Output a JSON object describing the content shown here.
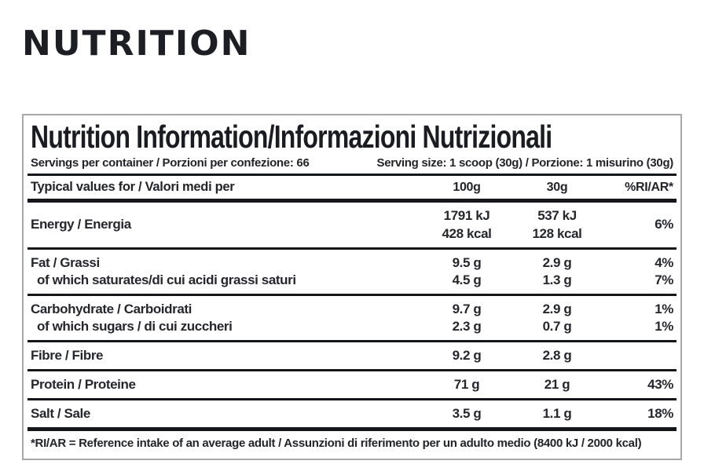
{
  "page": {
    "heading": "NUTRITION"
  },
  "table": {
    "title": "Nutrition Information/Informazioni Nutrizionali",
    "servings_left": "Servings per container / Porzioni per confezione: 66",
    "servings_right": "Serving size: 1 scoop (30g) / Porzione: 1 misurino (30g)",
    "columns": {
      "label": "Typical values for / Valori medi per",
      "col_100g": "100g",
      "col_30g": "30g",
      "col_ri": "%RI/AR*"
    },
    "energy": {
      "label": "Energy / Energia",
      "v100_kj": "1791 kJ",
      "v100_kcal": "428 kcal",
      "v30_kj": "537 kJ",
      "v30_kcal": "128 kcal",
      "ri": "6%"
    },
    "fat": {
      "label": "Fat / Grassi",
      "v100": "9.5 g",
      "v30": "2.9 g",
      "ri": "4%"
    },
    "saturates": {
      "label": "of which saturates/di cui acidi grassi saturi",
      "v100": "4.5 g",
      "v30": "1.3 g",
      "ri": "7%"
    },
    "carbohydrate": {
      "label": "Carbohydrate / Carboidrati",
      "v100": "9.7 g",
      "v30": "2.9 g",
      "ri": "1%"
    },
    "sugars": {
      "label": "of which sugars / di cui zuccheri",
      "v100": "2.3 g",
      "v30": "0.7 g",
      "ri": "1%"
    },
    "fibre": {
      "label": "Fibre / Fibre",
      "v100": "9.2 g",
      "v30": "2.8 g",
      "ri": ""
    },
    "protein": {
      "label": "Protein / Proteine",
      "v100": "71 g",
      "v30": "21 g",
      "ri": "43%"
    },
    "salt": {
      "label": "Salt / Sale",
      "v100": "3.5 g",
      "v30": "1.1 g",
      "ri": "18%"
    },
    "footnote": "*RI/AR = Reference intake of an average adult / Assunzioni di riferimento per un adulto medio (8400 kJ / 2000 kcal)"
  },
  "colors": {
    "text": "#232428",
    "heading_text": "#1d1e24",
    "divider_line": "#15161a",
    "table_border": "#a8a8a8",
    "background": "#ffffff"
  },
  "chart_data": {
    "type": "table",
    "title": "Nutrition Information/Informazioni Nutrizionali",
    "columns": [
      "Typical values for / Valori medi per",
      "100g",
      "30g",
      "%RI/AR*"
    ],
    "rows": [
      [
        "Energy / Energia",
        "1791 kJ / 428 kcal",
        "537 kJ / 128 kcal",
        "6%"
      ],
      [
        "Fat / Grassi",
        "9.5 g",
        "2.9 g",
        "4%"
      ],
      [
        "of which saturates/di cui acidi grassi saturi",
        "4.5 g",
        "1.3 g",
        "7%"
      ],
      [
        "Carbohydrate / Carboidrati",
        "9.7 g",
        "2.9 g",
        "1%"
      ],
      [
        "of which sugars / di cui zuccheri",
        "2.3 g",
        "0.7 g",
        "1%"
      ],
      [
        "Fibre / Fibre",
        "9.2 g",
        "2.8 g",
        ""
      ],
      [
        "Protein / Proteine",
        "71 g",
        "21 g",
        "43%"
      ],
      [
        "Salt / Sale",
        "3.5 g",
        "1.1 g",
        "18%"
      ]
    ]
  }
}
